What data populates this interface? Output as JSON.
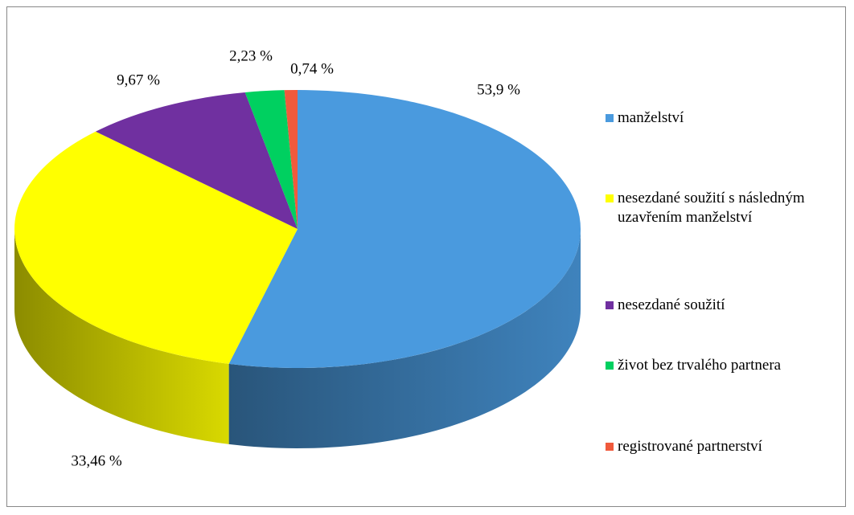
{
  "chart_data": {
    "type": "pie",
    "categories": [
      "manželství",
      "nesezdané soužití s následným uzavřením manželství",
      "nesezdané soužití",
      "život bez trvalého partnera",
      "registrované partnerství"
    ],
    "values": [
      53.9,
      33.46,
      9.67,
      2.23,
      0.74
    ],
    "value_labels": [
      "53,9 %",
      "33,46 %",
      "9,67 %",
      "2,23 %",
      "0,74 %"
    ],
    "colors": [
      "#4a9ade",
      "#ffff00",
      "#7030a0",
      "#00d060",
      "#f05a3c"
    ],
    "legend": "right"
  }
}
